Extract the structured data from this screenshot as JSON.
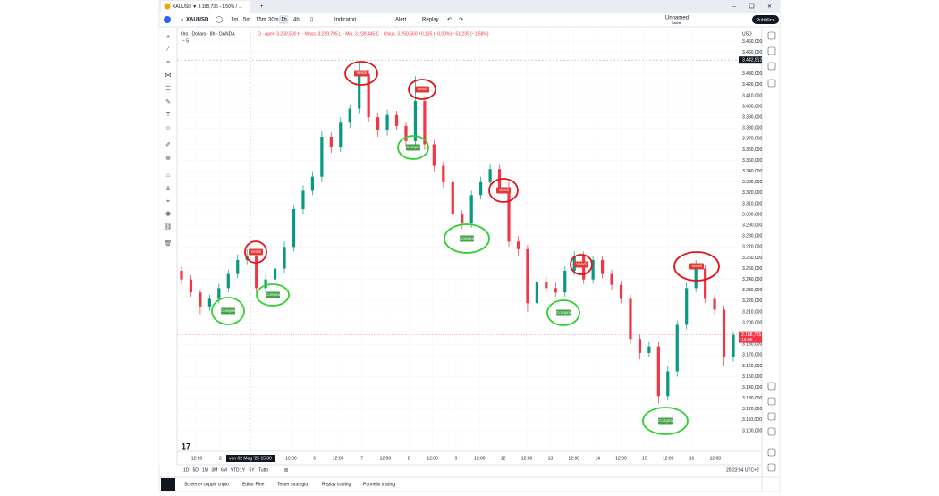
{
  "ui": {
    "tab_title": "XAUUSD ▼ 3.188,735 −1.50% / ...",
    "symbol": "XAUUSD",
    "intervals": [
      "1m",
      "5m",
      "15m",
      "30m",
      "1h",
      "4h"
    ],
    "indicators": "Indicatori",
    "alert": "Alert",
    "replay": "Replay",
    "layout_name": "Unnamed",
    "layout_save": "Salva",
    "publish": "Pubblica",
    "legend_title": "Oro / Dollaro · 8h · OANDA",
    "legend_ohlc": "O · Aper. 3.250,500  H · Mass. 3.259,795  L · Min. 3.239,445  C · Chius. 3.250,560  +0,135 (+0,00%)  −51,235 (−1,58%)",
    "legend_sub": "− 5",
    "currency": "USD",
    "ranges": [
      "1D",
      "5D",
      "1M",
      "3M",
      "6M",
      "YTD",
      "1Y",
      "5Y",
      "Tutto"
    ],
    "clock": "20:23:54 UTC+2",
    "bottom_tabs": [
      "Screener coppie cripto",
      "Editor Pine",
      "Tester strategia",
      "Replay trading",
      "Pannello trading"
    ]
  },
  "chart_data": {
    "type": "candlestick",
    "up_color": "#089981",
    "down_color": "#f23645",
    "x_labels": [
      "12:00",
      "2",
      null,
      null,
      "12:00",
      "6",
      "12:00",
      "7",
      "12:00",
      "8",
      "12:00",
      "9",
      "12:00",
      "12",
      "12:00",
      "13",
      "12:00",
      "14",
      "12:00",
      "15",
      "12:00",
      "16",
      "12:00"
    ],
    "crosshair_time": "ven 02 Mag '25   15:00",
    "crosshair_price": {
      "value": 3442.912,
      "label": "3.442,912"
    },
    "last_price": {
      "value": 3188.735,
      "label": "3.188,735"
    },
    "last_price_timer": "16:05",
    "annotations": [
      "Compra",
      "Vendi",
      "Compra",
      "Vendi",
      "Compra",
      "Vendi",
      "Compra",
      "Vendi",
      "Compra",
      "Vendi",
      "Compra",
      "Vendi"
    ],
    "opens": [
      3248,
      3240,
      3228,
      3215,
      3222,
      3232,
      3245,
      3258,
      3262,
      3232,
      3240,
      3250,
      3270,
      3305,
      3322,
      3335,
      3372,
      3362,
      3385,
      3398,
      3430,
      3390,
      3378,
      3392,
      3382,
      3368,
      3405,
      3365,
      3345,
      3330,
      3300,
      3292,
      3318,
      3330,
      3342,
      3325,
      3275,
      3268,
      3218,
      3238,
      3232,
      3228,
      3248,
      3262,
      3240,
      3258,
      3245,
      3235,
      3222,
      3185,
      3172,
      3178,
      3132,
      3155,
      3198,
      3232,
      3250,
      3222,
      3212,
      3168
    ],
    "highs": [
      3252,
      3244,
      3231,
      3226,
      3236,
      3249,
      3263,
      3268,
      3266,
      3245,
      3255,
      3275,
      3309,
      3327,
      3340,
      3377,
      3376,
      3390,
      3402,
      3440,
      3434,
      3394,
      3397,
      3396,
      3385,
      3428,
      3409,
      3369,
      3349,
      3334,
      3304,
      3322,
      3335,
      3347,
      3346,
      3330,
      3280,
      3272,
      3242,
      3243,
      3237,
      3252,
      3266,
      3266,
      3262,
      3262,
      3249,
      3239,
      3226,
      3189,
      3182,
      3182,
      3160,
      3202,
      3237,
      3258,
      3253,
      3226,
      3216,
      3192
    ],
    "lows": [
      3236,
      3224,
      3208,
      3211,
      3218,
      3228,
      3241,
      3254,
      3228,
      3228,
      3236,
      3246,
      3266,
      3300,
      3318,
      3330,
      3357,
      3358,
      3380,
      3393,
      3386,
      3372,
      3373,
      3378,
      3363,
      3364,
      3360,
      3340,
      3325,
      3295,
      3287,
      3288,
      3314,
      3326,
      3320,
      3270,
      3262,
      3210,
      3214,
      3228,
      3224,
      3224,
      3244,
      3236,
      3236,
      3241,
      3230,
      3218,
      3180,
      3166,
      3168,
      3125,
      3128,
      3150,
      3194,
      3228,
      3218,
      3207,
      3160,
      3164
    ],
    "closes": [
      3240,
      3228,
      3215,
      3222,
      3232,
      3245,
      3258,
      3262,
      3232,
      3240,
      3250,
      3270,
      3305,
      3322,
      3335,
      3372,
      3362,
      3385,
      3398,
      3430,
      3390,
      3378,
      3392,
      3382,
      3368,
      3405,
      3365,
      3345,
      3330,
      3300,
      3292,
      3318,
      3330,
      3342,
      3325,
      3275,
      3268,
      3218,
      3238,
      3232,
      3228,
      3248,
      3262,
      3240,
      3258,
      3245,
      3235,
      3222,
      3185,
      3172,
      3178,
      3132,
      3155,
      3198,
      3232,
      3250,
      3222,
      3212,
      3168,
      3188.735
    ],
    "ylim": [
      3081,
      3472
    ],
    "yticks": [
      {
        "value": 3100,
        "label": "3.100,000"
      },
      {
        "value": 3110,
        "label": "3.110,000"
      },
      {
        "value": 3120,
        "label": "3.120,000"
      },
      {
        "value": 3130,
        "label": "3.130,000"
      },
      {
        "value": 3140,
        "label": "3.140,000"
      },
      {
        "value": 3150,
        "label": "3.150,000"
      },
      {
        "value": 3160,
        "label": "3.160,000"
      },
      {
        "value": 3170,
        "label": "3.170,000"
      },
      {
        "value": 3180,
        "label": "3.180,000"
      },
      {
        "value": 3200,
        "label": "3.200,000"
      },
      {
        "value": 3210,
        "label": "3.210,000"
      },
      {
        "value": 3220,
        "label": "3.220,000"
      },
      {
        "value": 3230,
        "label": "3.230,000"
      },
      {
        "value": 3240,
        "label": "3.240,000"
      },
      {
        "value": 3250,
        "label": "3.250,000"
      },
      {
        "value": 3260,
        "label": "3.260,000"
      },
      {
        "value": 3270,
        "label": "3.270,000"
      },
      {
        "value": 3280,
        "label": "3.280,000"
      },
      {
        "value": 3290,
        "label": "3.290,000"
      },
      {
        "value": 3300,
        "label": "3.300,000"
      },
      {
        "value": 3310,
        "label": "3.310,000"
      },
      {
        "value": 3320,
        "label": "3.320,000"
      },
      {
        "value": 3330,
        "label": "3.330,000"
      },
      {
        "value": 3340,
        "label": "3.340,000"
      },
      {
        "value": 3350,
        "label": "3.350,000"
      },
      {
        "value": 3360,
        "label": "3.360,000"
      },
      {
        "value": 3370,
        "label": "3.370,000"
      },
      {
        "value": 3380,
        "label": "3.380,000"
      },
      {
        "value": 3390,
        "label": "3.390,000"
      },
      {
        "value": 3400,
        "label": "3.400,000"
      },
      {
        "value": 3410,
        "label": "3.410,000"
      },
      {
        "value": 3420,
        "label": "3.420,000"
      },
      {
        "value": 3430,
        "label": "3.430,000"
      },
      {
        "value": 3450,
        "label": "3.450,000"
      },
      {
        "value": 3460,
        "label": "3.460,000"
      }
    ]
  }
}
